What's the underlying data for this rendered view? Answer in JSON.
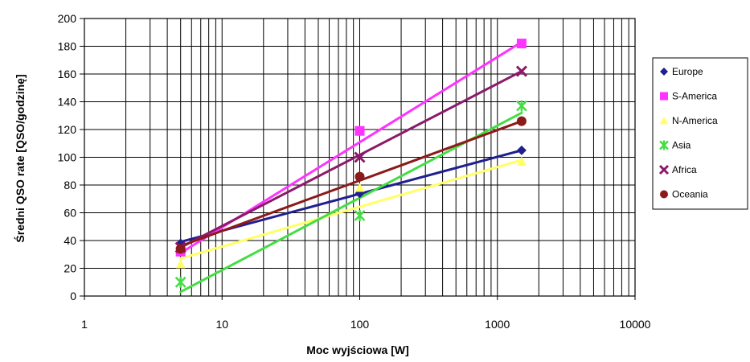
{
  "chart_data": {
    "type": "scatter",
    "title": "",
    "xlabel": "Moc wyjściowa [W]",
    "ylabel": "Średni QSO rate [QSO/godzinę]",
    "x_scale": "log",
    "xlim": [
      1,
      10000
    ],
    "ylim": [
      0,
      200
    ],
    "x_ticks": [
      1,
      10,
      100,
      1000,
      10000
    ],
    "x_tick_labels": [
      "1",
      "10",
      "100",
      "1000",
      "10000"
    ],
    "y_ticks": [
      0,
      20,
      40,
      60,
      80,
      100,
      120,
      140,
      160,
      180,
      200
    ],
    "y_tick_labels": [
      "0",
      "20",
      "40",
      "60",
      "80",
      "100",
      "120",
      "140",
      "160",
      "180",
      "200"
    ],
    "grid": true,
    "legend_position": "right",
    "x": [
      5,
      100,
      1500
    ],
    "series": [
      {
        "name": "Europe",
        "color": "#1f1f8f",
        "marker": "diamond",
        "values": [
          38,
          74,
          105
        ],
        "fit": [
          5,
          39,
          1500,
          105
        ]
      },
      {
        "name": "S-America",
        "color": "#ff33ff",
        "marker": "square",
        "values": [
          32,
          119,
          182
        ],
        "fit": [
          5,
          31,
          1500,
          183
        ]
      },
      {
        "name": "N-America",
        "color": "#ffff66",
        "marker": "triangle",
        "values": [
          23,
          78,
          97
        ],
        "fit": [
          5,
          27,
          1500,
          98
        ]
      },
      {
        "name": "Asia",
        "color": "#44dd44",
        "marker": "star",
        "values": [
          10,
          58,
          137
        ],
        "fit": [
          5,
          3,
          1500,
          132
        ]
      },
      {
        "name": "Africa",
        "color": "#8b1a6b",
        "marker": "x",
        "values": [
          35,
          100,
          162
        ],
        "fit": [
          5,
          35,
          1500,
          162
        ]
      },
      {
        "name": "Oceania",
        "color": "#8b1a1a",
        "marker": "circle",
        "values": [
          34,
          86,
          126
        ],
        "fit": [
          5,
          36,
          1500,
          126
        ]
      }
    ]
  }
}
